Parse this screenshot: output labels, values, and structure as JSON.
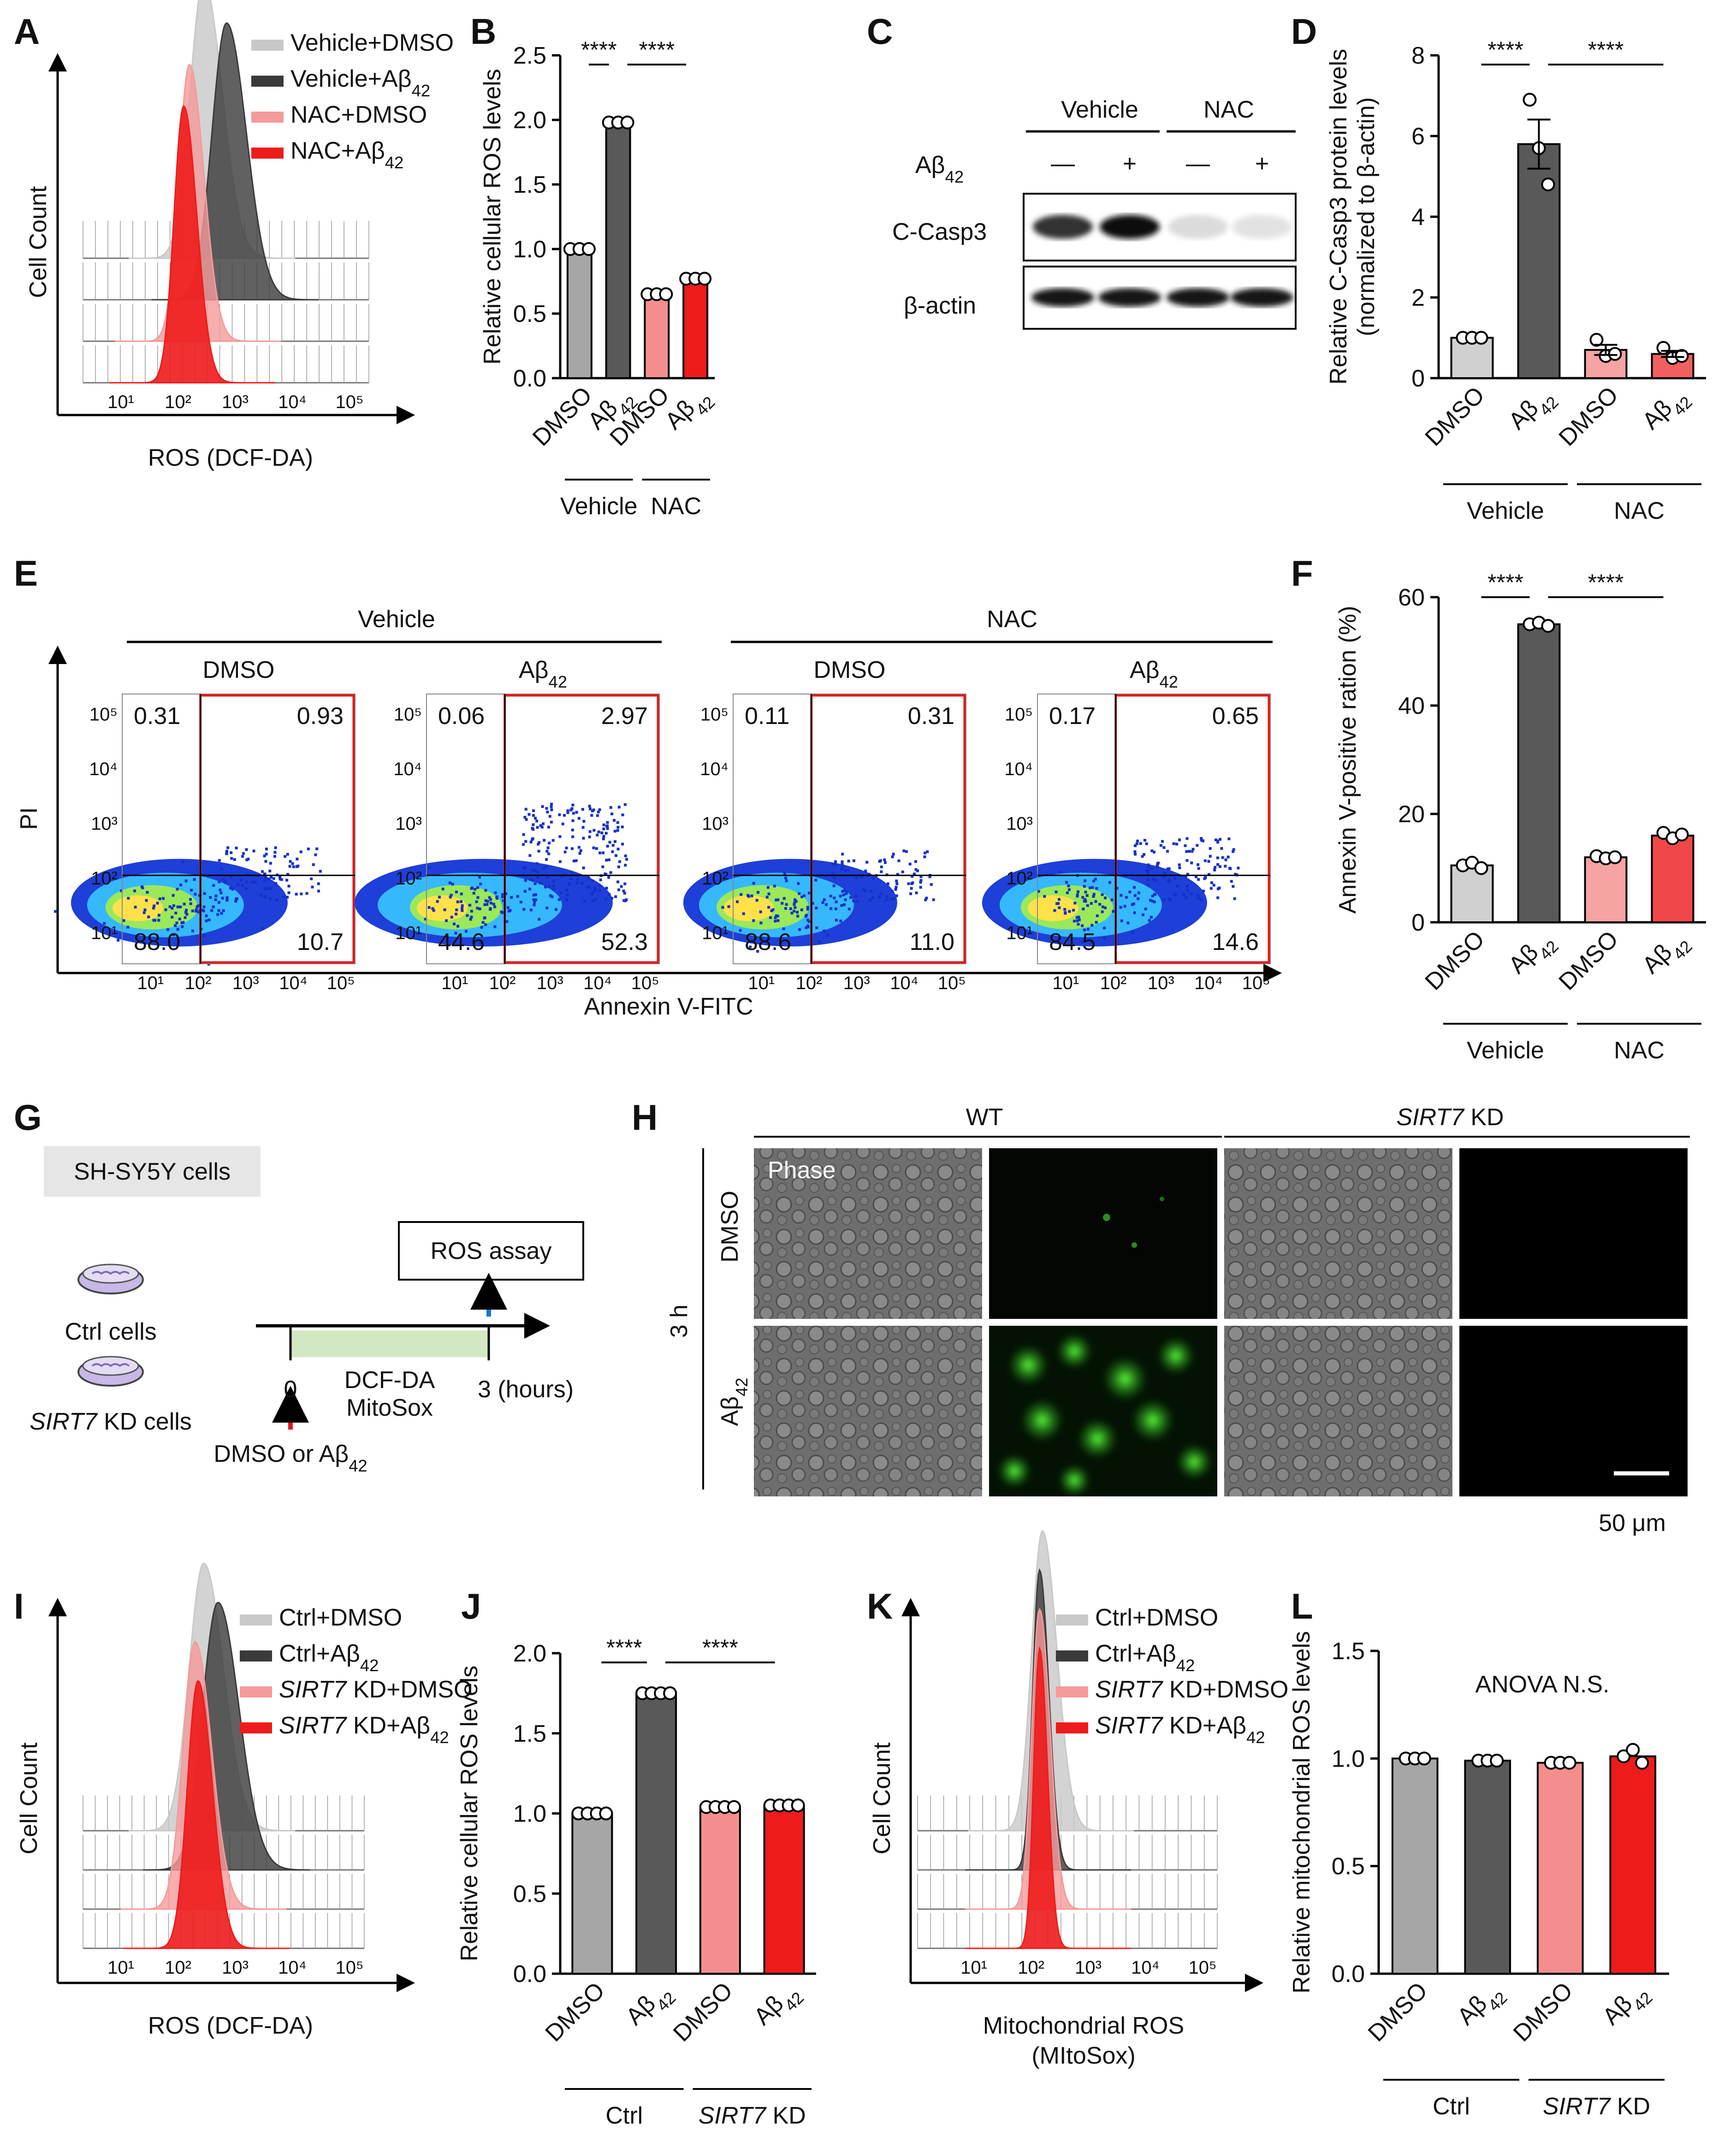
{
  "panel_letters": [
    "A",
    "B",
    "C",
    "D",
    "E",
    "F",
    "G",
    "H",
    "I",
    "J",
    "K",
    "L"
  ],
  "histogram_A": {
    "ylabel": "Cell Count",
    "xlabel": "ROS (DCF-DA)",
    "ticks": [
      "10¹",
      "10²",
      "10³",
      "10⁴",
      "10⁵"
    ],
    "legend": [
      "Vehicle+DMSO",
      "Vehicle+Aβ42",
      "NAC+DMSO",
      "NAC+Aβ42"
    ],
    "colors": [
      "#c8c8c8",
      "#3a3a3a",
      "#f59a9a",
      "#ee1b1b"
    ],
    "peaks_log": [
      2.45,
      2.85,
      2.2,
      2.1
    ]
  },
  "histogram_I": {
    "ylabel": "Cell Count",
    "xlabel": "ROS (DCF-DA)",
    "ticks": [
      "10¹",
      "10²",
      "10³",
      "10⁴",
      "10⁵"
    ],
    "legend": [
      "Ctrl+DMSO",
      "Ctrl+Aβ42",
      "SIRT7 KD+DMSO",
      "SIRT7 KD+Aβ42"
    ],
    "colors": [
      "#c8c8c8",
      "#3a3a3a",
      "#f59a9a",
      "#ee1b1b"
    ],
    "peaks_log": [
      2.45,
      2.7,
      2.3,
      2.35
    ]
  },
  "histogram_K": {
    "ylabel": "Cell Count",
    "xlabel": "Mitochondrial ROS",
    "xlabel2": "(MItoSox)",
    "ticks": [
      "10¹",
      "10²",
      "10³",
      "10⁴",
      "10⁵"
    ],
    "legend": [
      "Ctrl+DMSO",
      "Ctrl+Aβ42",
      "SIRT7 KD+DMSO",
      "SIRT7 KD+Aβ42"
    ],
    "colors": [
      "#c8c8c8",
      "#3a3a3a",
      "#f59a9a",
      "#ee1b1b"
    ],
    "peaks_log": [
      2.2,
      2.15,
      2.15,
      2.15
    ]
  },
  "chart_data": [
    {
      "id": "B",
      "type": "bar",
      "categories": [
        "DMSO",
        "Aβ42",
        "DMSO",
        "Aβ42"
      ],
      "groups": [
        "Vehicle",
        "NAC"
      ],
      "values": [
        1.0,
        1.98,
        0.65,
        0.77
      ],
      "points": [
        [
          1.0,
          1.0,
          1.0
        ],
        [
          1.98,
          1.98,
          1.98
        ],
        [
          0.65,
          0.65,
          0.65
        ],
        [
          0.77,
          0.77,
          0.77
        ]
      ],
      "ylabel": "Relative cellular ROS levels",
      "ylim": [
        0,
        2.5
      ],
      "yticks": [
        "0.0",
        "0.5",
        "1.0",
        "1.5",
        "2.0",
        "2.5"
      ],
      "colors": [
        "#a6a6a6",
        "#595959",
        "#f48e8e",
        "#ee1b1b"
      ],
      "significance": [
        "****",
        "****"
      ]
    },
    {
      "id": "D",
      "type": "bar",
      "categories": [
        "DMSO",
        "Aβ42",
        "DMSO",
        "Aβ42"
      ],
      "groups": [
        "Vehicle",
        "NAC"
      ],
      "values": [
        1.0,
        5.8,
        0.7,
        0.6
      ],
      "points": [
        [
          1.0,
          1.0,
          1.0
        ],
        [
          6.9,
          5.7,
          4.8
        ],
        [
          0.95,
          0.55,
          0.6
        ],
        [
          0.75,
          0.5,
          0.55
        ]
      ],
      "ylabel": "Relative C-Casp3 protein levels",
      "ylabel2": "(normalized to β-actin)",
      "ylim": [
        0,
        8
      ],
      "yticks": [
        "0",
        "2",
        "4",
        "6",
        "8"
      ],
      "colors": [
        "#d0d0d0",
        "#595959",
        "#f5a3a3",
        "#f06060"
      ],
      "significance": [
        "****",
        "****"
      ]
    },
    {
      "id": "F",
      "type": "bar",
      "categories": [
        "DMSO",
        "Aβ42",
        "DMSO",
        "Aβ42"
      ],
      "groups": [
        "Vehicle",
        "NAC"
      ],
      "values": [
        10.5,
        55,
        12,
        16
      ],
      "points": [
        [
          10.5,
          11,
          10
        ],
        [
          55,
          55.3,
          54.7
        ],
        [
          12.2,
          11.8,
          12
        ],
        [
          16.5,
          15.5,
          16.2
        ]
      ],
      "ylabel": "Annexin V-positive ration (%)",
      "ylim": [
        0,
        60
      ],
      "yticks": [
        "0",
        "20",
        "40",
        "60"
      ],
      "colors": [
        "#d0d0d0",
        "#595959",
        "#f5a3a3",
        "#f04848"
      ],
      "significance": [
        "****",
        "****"
      ]
    },
    {
      "id": "J",
      "type": "bar",
      "categories": [
        "DMSO",
        "Aβ42",
        "DMSO",
        "Aβ42"
      ],
      "groups": [
        "Ctrl",
        "SIRT7 KD"
      ],
      "values": [
        1.0,
        1.75,
        1.04,
        1.05
      ],
      "points": [
        [
          1.0,
          1.0,
          1.0,
          1.0
        ],
        [
          1.75,
          1.75,
          1.75,
          1.75
        ],
        [
          1.04,
          1.04,
          1.04,
          1.04
        ],
        [
          1.05,
          1.05,
          1.05,
          1.05
        ]
      ],
      "ylabel": "Relative cellular ROS levels",
      "ylim": [
        0,
        2.0
      ],
      "yticks": [
        "0.0",
        "0.5",
        "1.0",
        "1.5",
        "2.0"
      ],
      "colors": [
        "#a6a6a6",
        "#595959",
        "#f48e8e",
        "#ee1b1b"
      ],
      "significance": [
        "****",
        "****"
      ]
    },
    {
      "id": "L",
      "type": "bar",
      "categories": [
        "DMSO",
        "Aβ42",
        "DMSO",
        "Aβ42"
      ],
      "groups": [
        "Ctrl",
        "SIRT7 KD"
      ],
      "values": [
        1.0,
        0.99,
        0.98,
        1.01
      ],
      "points": [
        [
          1.0,
          1.0,
          1.0
        ],
        [
          0.99,
          0.99,
          0.99
        ],
        [
          0.98,
          0.98,
          0.98
        ],
        [
          1.01,
          1.04,
          0.98
        ]
      ],
      "ylabel": "Relative mitochondrial ROS levels",
      "ylim": [
        0,
        1.5
      ],
      "yticks": [
        "0.0",
        "0.5",
        "1.0",
        "1.5"
      ],
      "colors": [
        "#a6a6a6",
        "#595959",
        "#f48e8e",
        "#ee1b1b"
      ],
      "annotation": "ANOVA N.S."
    }
  ],
  "western_C": {
    "groups": [
      "Vehicle",
      "NAC"
    ],
    "row_label": "Aβ42",
    "marks": [
      "—",
      "+",
      "—",
      "+"
    ],
    "bands": [
      "C-Casp3",
      "β-actin"
    ],
    "casp3_intensity": [
      0.85,
      1.0,
      0.15,
      0.12
    ],
    "actin_intensity": [
      1.0,
      1.0,
      1.0,
      1.0
    ]
  },
  "flow_E": {
    "groups": [
      "Vehicle",
      "NAC"
    ],
    "conditions": [
      "DMSO",
      "Aβ42",
      "DMSO",
      "Aβ42"
    ],
    "quadrants": [
      [
        "0.31",
        "0.93",
        "88.0",
        "10.7"
      ],
      [
        "0.06",
        "2.97",
        "44.6",
        "52.3"
      ],
      [
        "0.11",
        "0.31",
        "88.6",
        "11.0"
      ],
      [
        "0.17",
        "0.65",
        "84.5",
        "14.6"
      ]
    ],
    "ylabel": "PI",
    "xlabel": "Annexin V-FITC",
    "xticks": [
      "10¹",
      "10²",
      "10³",
      "10⁴",
      "10⁵"
    ],
    "yticks": [
      "10¹",
      "10²",
      "10³",
      "10⁴",
      "10⁵"
    ]
  },
  "schema_G": {
    "title": "SH-SY5Y cells",
    "cells": [
      "Ctrl cells",
      "SIRT7 KD cells"
    ],
    "box": "ROS assay",
    "dyes": [
      "DCF-DA",
      "MitoSox"
    ],
    "t0": "0",
    "t3": "3 (hours)",
    "treatment": "DMSO or Aβ42"
  },
  "micro_H": {
    "groups": [
      "WT",
      "SIRT7 KD"
    ],
    "rows": [
      "DMSO",
      "Aβ42"
    ],
    "time": "3 h",
    "phase_label": "Phase",
    "scale": "50 μm"
  }
}
